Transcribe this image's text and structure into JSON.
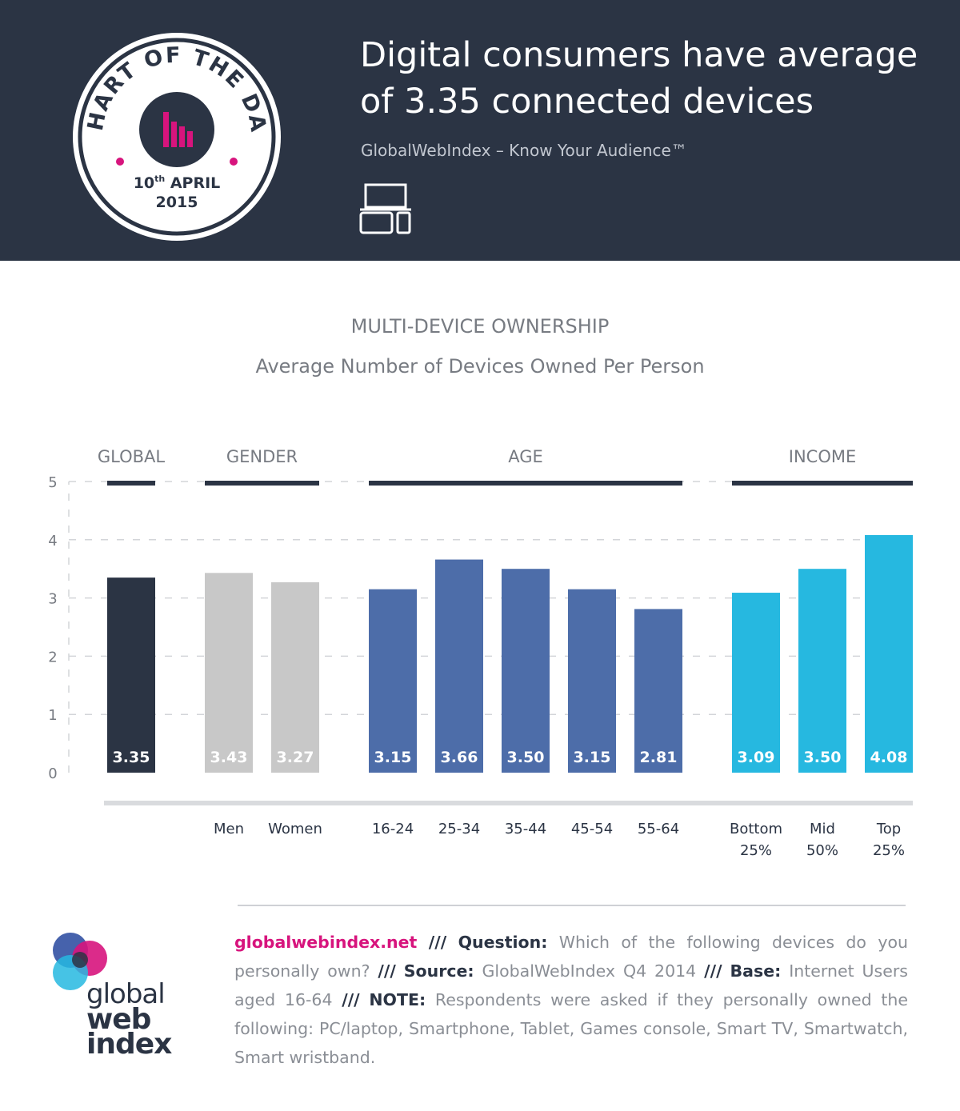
{
  "badge": {
    "arc_text": "CHART OF THE DAY",
    "day": "10",
    "day_suffix": "th",
    "month": "APRIL",
    "year": "2015"
  },
  "header": {
    "headline_line1": "Digital consumers have average",
    "headline_line2": "of 3.35 connected devices",
    "subline": "GlobalWebIndex – Know Your Audience™",
    "devices_icon": "devices-icon"
  },
  "colors": {
    "header_bg": "#2b3444",
    "global": "#2b3444",
    "gender": "#c8c8c8",
    "age": "#4d6da9",
    "income": "#26b8e0",
    "accent": "#d7147d"
  },
  "chart_data": {
    "type": "bar",
    "title": "MULTI-DEVICE OWNERSHIP",
    "subtitle": "Average Number of Devices Owned Per Person",
    "ylim": [
      0,
      5
    ],
    "yticks": [
      "0",
      "1",
      "2",
      "3",
      "4",
      "5"
    ],
    "grid": true,
    "groups": [
      {
        "label": "GLOBAL",
        "color": "#2b3444",
        "categories": [
          ""
        ],
        "category_lines": [
          [
            ""
          ]
        ],
        "values": [
          3.35
        ],
        "value_labels": [
          "3.35"
        ]
      },
      {
        "label": "GENDER",
        "color": "#c8c8c8",
        "categories": [
          "Men",
          "Women"
        ],
        "category_lines": [
          [
            "Men"
          ],
          [
            "Women"
          ]
        ],
        "values": [
          3.43,
          3.27
        ],
        "value_labels": [
          "3.43",
          "3.27"
        ]
      },
      {
        "label": "AGE",
        "color": "#4d6da9",
        "categories": [
          "16-24",
          "25-34",
          "35-44",
          "45-54",
          "55-64"
        ],
        "category_lines": [
          [
            "16-24"
          ],
          [
            "25-34"
          ],
          [
            "35-44"
          ],
          [
            "45-54"
          ],
          [
            "55-64"
          ]
        ],
        "values": [
          3.15,
          3.66,
          3.5,
          3.15,
          2.81
        ],
        "value_labels": [
          "3.15",
          "3.66",
          "3.50",
          "3.15",
          "2.81"
        ]
      },
      {
        "label": "INCOME",
        "color": "#26b8e0",
        "categories": [
          "Bottom 25%",
          "Mid 50%",
          "Top 25%"
        ],
        "category_lines": [
          [
            "Bottom",
            "25%"
          ],
          [
            "Mid",
            "50%"
          ],
          [
            "Top",
            "25%"
          ]
        ],
        "values": [
          3.09,
          3.5,
          4.08
        ],
        "value_labels": [
          "3.09",
          "3.50",
          "4.08"
        ]
      }
    ]
  },
  "footer": {
    "site": "globalwebindex.net",
    "sep": "///",
    "question_label": "Question:",
    "question_text": "Which of the following devices do you personally own?",
    "source_label": "Source:",
    "source_text": "GlobalWebIndex Q4 2014",
    "base_label": "Base:",
    "base_text": "Internet Users aged 16-64",
    "note_label": "NOTE:",
    "note_text": "Respondents were asked if they personally owned the following: PC/laptop, Smartphone, Tablet, Games console, Smart TV, Smartwatch, Smart wristband.",
    "logo_line1": "global",
    "logo_line2": "web",
    "logo_line3": "index"
  }
}
